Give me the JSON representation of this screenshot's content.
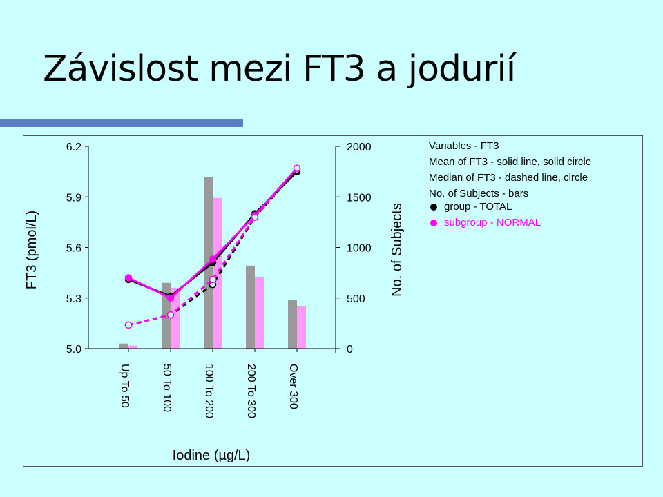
{
  "slide": {
    "title": "Závislost mezi FT3 a jodurií"
  },
  "colors": {
    "background": "#ccffff",
    "accent_bar": "#5b7fc4",
    "total": "#000000",
    "normal": "#ff00ff",
    "bar_total": "#999999",
    "bar_normal": "#ff99ff"
  },
  "chart_data": {
    "type": "bar+line",
    "categories": [
      "Up To 50",
      "50 To 100",
      "100 To 200",
      "200 To 300",
      "Over 300"
    ],
    "xlabel": "Iodine (µg/L)",
    "ylabel": "FT3 (pmol/L)",
    "y2label": "No. of Subjects",
    "ylim": [
      5.0,
      6.2
    ],
    "y2lim": [
      0,
      2000
    ],
    "yticks": [
      "6.2",
      "5.9",
      "5.6",
      "5.3",
      "5.0"
    ],
    "y2ticks": [
      "2000",
      "1500",
      "1000",
      "500",
      "0"
    ],
    "legend": {
      "position": "right",
      "lines": [
        "Variables - FT3",
        "Mean of FT3 - solid line, solid circle",
        "Median of FT3 - dashed line, circle",
        "No. of Subjects - bars"
      ],
      "groups": [
        {
          "label": "group - TOTAL",
          "color": "#000000"
        },
        {
          "label": "subgroup - NORMAL",
          "color": "#ff00ff"
        }
      ]
    },
    "series": [
      {
        "name": "group - TOTAL",
        "kind": "mean",
        "values": [
          5.41,
          5.31,
          5.51,
          5.8,
          6.05
        ]
      },
      {
        "name": "subgroup - NORMAL",
        "kind": "mean",
        "values": [
          5.42,
          5.3,
          5.53,
          5.79,
          6.07
        ]
      },
      {
        "name": "group - TOTAL",
        "kind": "median",
        "values": [
          5.14,
          5.2,
          5.38,
          5.78,
          6.06
        ]
      },
      {
        "name": "subgroup - NORMAL",
        "kind": "median",
        "values": [
          5.14,
          5.2,
          5.41,
          5.78,
          6.07
        ]
      }
    ],
    "bars": [
      {
        "name": "group - TOTAL",
        "values": [
          50,
          650,
          1700,
          820,
          480
        ]
      },
      {
        "name": "subgroup - NORMAL",
        "values": [
          30,
          600,
          1490,
          710,
          420
        ]
      }
    ]
  }
}
